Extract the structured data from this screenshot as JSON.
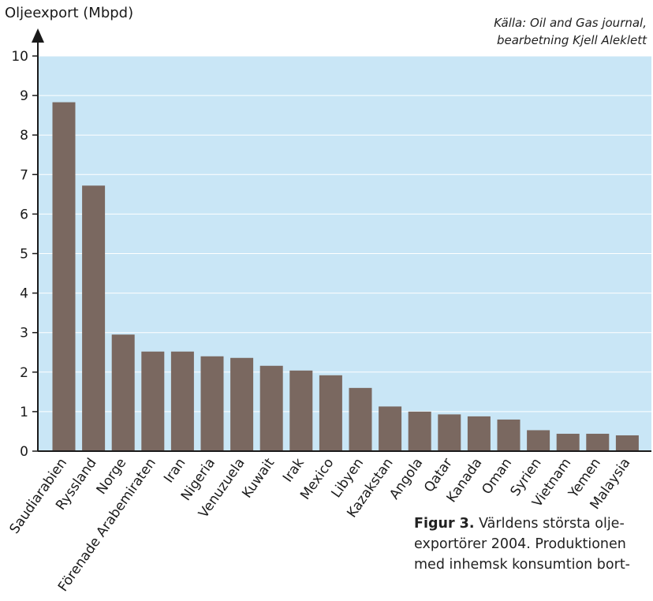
{
  "source_line1": "Källa: Oil and Gas journal,",
  "source_line2": "bearbetning Kjell Aleklett",
  "caption_bold": "Figur 3.",
  "caption_line1_rest": " Världens största olje-",
  "caption_line2": "exportörer 2004. Produktionen",
  "caption_line3": "med inhemsk konsumtion bort-",
  "colors": {
    "plot_bg": "#c9e6f6",
    "bar": "#7a6860",
    "axis": "#1a1a1a",
    "grid": "#ffffff"
  },
  "chart_data": {
    "type": "bar",
    "ylabel": "Oljeexport (Mbpd)",
    "ylim": [
      0,
      10
    ],
    "yticks": [
      0,
      1,
      2,
      3,
      4,
      5,
      6,
      7,
      8,
      9,
      10
    ],
    "grid": true,
    "categories": [
      "Saudiarabien",
      "Ryssland",
      "Norge",
      "Förenade Arabemiraten",
      "Iran",
      "Nigeria",
      "Venuzuela",
      "Kuwait",
      "Irak",
      "Mexico",
      "Libyen",
      "Kazakstan",
      "Angola",
      "Qatar",
      "Kanada",
      "Oman",
      "Syrien",
      "Vietnam",
      "Yemen",
      "Malaysia"
    ],
    "values": [
      8.83,
      6.72,
      2.95,
      2.52,
      2.52,
      2.4,
      2.36,
      2.16,
      2.04,
      1.92,
      1.6,
      1.13,
      1.0,
      0.93,
      0.88,
      0.8,
      0.53,
      0.44,
      0.44,
      0.4
    ]
  }
}
